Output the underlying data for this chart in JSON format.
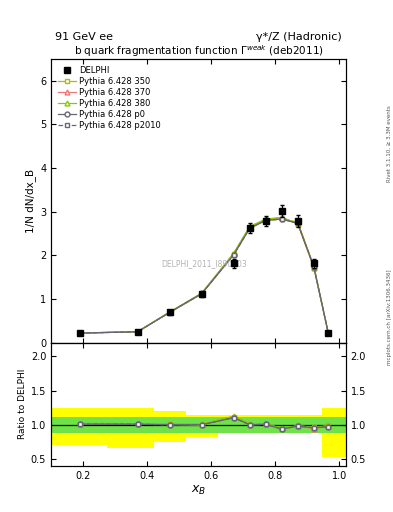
{
  "title_left": "91 GeV ee",
  "title_right": "γ*/Z (Hadronic)",
  "plot_title": "b quark fragmentation function Γ$^{weak}$ (deb2011)",
  "ylabel_main": "1/N dN/dx_B",
  "ylabel_ratio": "Ratio to DELPHI",
  "xlabel": "x_B",
  "right_label_top": "Rivet 3.1.10, ≥ 3.3M events",
  "right_label_bot": "mcplots.cern.ch [arXiv:1306.3436]",
  "watermark": "DELPHI_2011_I890503",
  "xB": [
    0.19,
    0.37,
    0.47,
    0.57,
    0.67,
    0.72,
    0.77,
    0.82,
    0.87,
    0.92,
    0.965
  ],
  "delphi_y": [
    0.215,
    0.245,
    0.69,
    1.12,
    1.82,
    2.62,
    2.78,
    3.02,
    2.78,
    1.82,
    0.23
  ],
  "delphi_yerr": [
    0.02,
    0.02,
    0.05,
    0.07,
    0.1,
    0.12,
    0.12,
    0.14,
    0.14,
    0.1,
    0.04
  ],
  "p350_y": [
    0.218,
    0.248,
    0.695,
    1.11,
    2.03,
    2.62,
    2.8,
    2.83,
    2.76,
    1.75,
    0.228
  ],
  "p370_y": [
    0.219,
    0.249,
    0.7,
    1.13,
    2.04,
    2.65,
    2.82,
    2.86,
    2.72,
    1.72,
    0.226
  ],
  "p380_y": [
    0.219,
    0.249,
    0.7,
    1.13,
    2.05,
    2.66,
    2.83,
    2.87,
    2.73,
    1.73,
    0.227
  ],
  "pp0_y": [
    0.217,
    0.247,
    0.69,
    1.12,
    2.01,
    2.62,
    2.8,
    2.83,
    2.73,
    1.74,
    0.224
  ],
  "pp2010_y": [
    0.217,
    0.247,
    0.69,
    1.12,
    2.01,
    2.62,
    2.8,
    2.83,
    2.73,
    1.74,
    0.224
  ],
  "color_350": "#b8b800",
  "color_370": "#ee7777",
  "color_380": "#88cc00",
  "color_p0": "#666677",
  "color_p2010": "#666677",
  "ylim_main": [
    0,
    6.5
  ],
  "ylim_ratio": [
    0.4,
    2.2
  ],
  "yticks_main": [
    0,
    1,
    2,
    3,
    4,
    5,
    6
  ],
  "yticks_ratio": [
    0.5,
    1.0,
    1.5,
    2.0
  ],
  "band_x_edges": [
    0.1,
    0.275,
    0.42,
    0.52,
    0.62,
    0.695,
    0.745,
    0.795,
    0.845,
    0.895,
    0.945,
    1.02
  ],
  "green_band_low": [
    0.88,
    0.88,
    0.88,
    0.88,
    0.88,
    0.88,
    0.88,
    0.88,
    0.88,
    0.88,
    0.88
  ],
  "green_band_high": [
    1.12,
    1.12,
    1.12,
    1.12,
    1.12,
    1.12,
    1.12,
    1.12,
    1.12,
    1.12,
    1.12
  ],
  "yellow_band_low": [
    0.7,
    0.66,
    0.75,
    0.82,
    0.88,
    0.88,
    0.88,
    0.88,
    0.88,
    0.88,
    0.53
  ],
  "yellow_band_high": [
    1.25,
    1.25,
    1.2,
    1.15,
    1.15,
    1.15,
    1.15,
    1.15,
    1.15,
    1.15,
    1.25
  ]
}
